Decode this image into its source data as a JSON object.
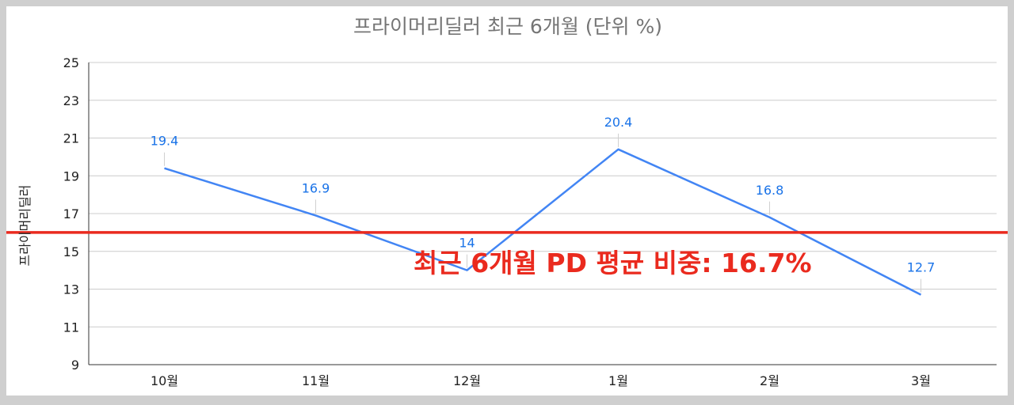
{
  "chart_data": {
    "type": "line",
    "title": "프라이머리딜러 최근 6개월 (단위 %)",
    "xlabel": "",
    "ylabel": "프라이머리딜러",
    "categories": [
      "10월",
      "11월",
      "12월",
      "1월",
      "2월",
      "3월"
    ],
    "series": [
      {
        "name": "",
        "values": [
          19.4,
          16.9,
          14,
          20.4,
          16.8,
          12.7
        ],
        "data_labels": [
          "19.4",
          "16.9",
          "14",
          "20.4",
          "16.8",
          "12.7"
        ],
        "color": "#4285f4"
      }
    ],
    "ylim": [
      9,
      25
    ],
    "yticks": [
      9,
      11,
      13,
      15,
      17,
      19,
      21,
      23,
      25
    ],
    "ytick_labels": [
      "9",
      "11",
      "13",
      "15",
      "17",
      "19",
      "21",
      "23",
      "25"
    ],
    "grid": true,
    "legend": "none",
    "reference_line": {
      "value": 16,
      "color": "#ea2a1e"
    },
    "annotation": {
      "text": "최근 6개월 PD 평균 비중: 16.7%",
      "color": "#ea2a1e"
    }
  }
}
